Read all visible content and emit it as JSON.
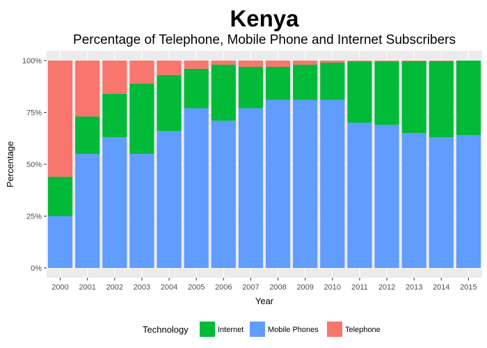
{
  "chart_data": {
    "type": "bar",
    "stacked": true,
    "title": "Kenya",
    "subtitle": "Percentage of Telephone, Mobile Phone and Internet Subscribers",
    "xlabel": "Year",
    "ylabel": "Percentage",
    "ylim": [
      0,
      1
    ],
    "y_ticks": [
      0,
      0.25,
      0.5,
      0.75,
      1.0
    ],
    "y_tick_labels": [
      "0%",
      "25%",
      "50%",
      "75%",
      "100%"
    ],
    "grid": true,
    "legend_position": "bottom",
    "legend_title": "Technology",
    "categories": [
      "2000",
      "2001",
      "2002",
      "2003",
      "2004",
      "2005",
      "2006",
      "2007",
      "2008",
      "2009",
      "2010",
      "2011",
      "2012",
      "2013",
      "2014",
      "2015"
    ],
    "series": [
      {
        "name": "Mobile Phones",
        "color": "#619CFF",
        "values": [
          0.25,
          0.55,
          0.63,
          0.55,
          0.66,
          0.77,
          0.71,
          0.77,
          0.81,
          0.81,
          0.81,
          0.7,
          0.69,
          0.65,
          0.63,
          0.64
        ]
      },
      {
        "name": "Internet",
        "color": "#00BA38",
        "values": [
          0.19,
          0.18,
          0.21,
          0.34,
          0.27,
          0.19,
          0.27,
          0.2,
          0.16,
          0.17,
          0.18,
          0.295,
          0.305,
          0.347,
          0.367,
          0.36
        ]
      },
      {
        "name": "Telephone",
        "color": "#F8766D",
        "values": [
          0.56,
          0.27,
          0.16,
          0.11,
          0.07,
          0.04,
          0.02,
          0.03,
          0.03,
          0.02,
          0.01,
          0.005,
          0.005,
          0.003,
          0.003,
          0.0
        ]
      }
    ],
    "legend_order": [
      "Internet",
      "Mobile Phones",
      "Telephone"
    ]
  }
}
